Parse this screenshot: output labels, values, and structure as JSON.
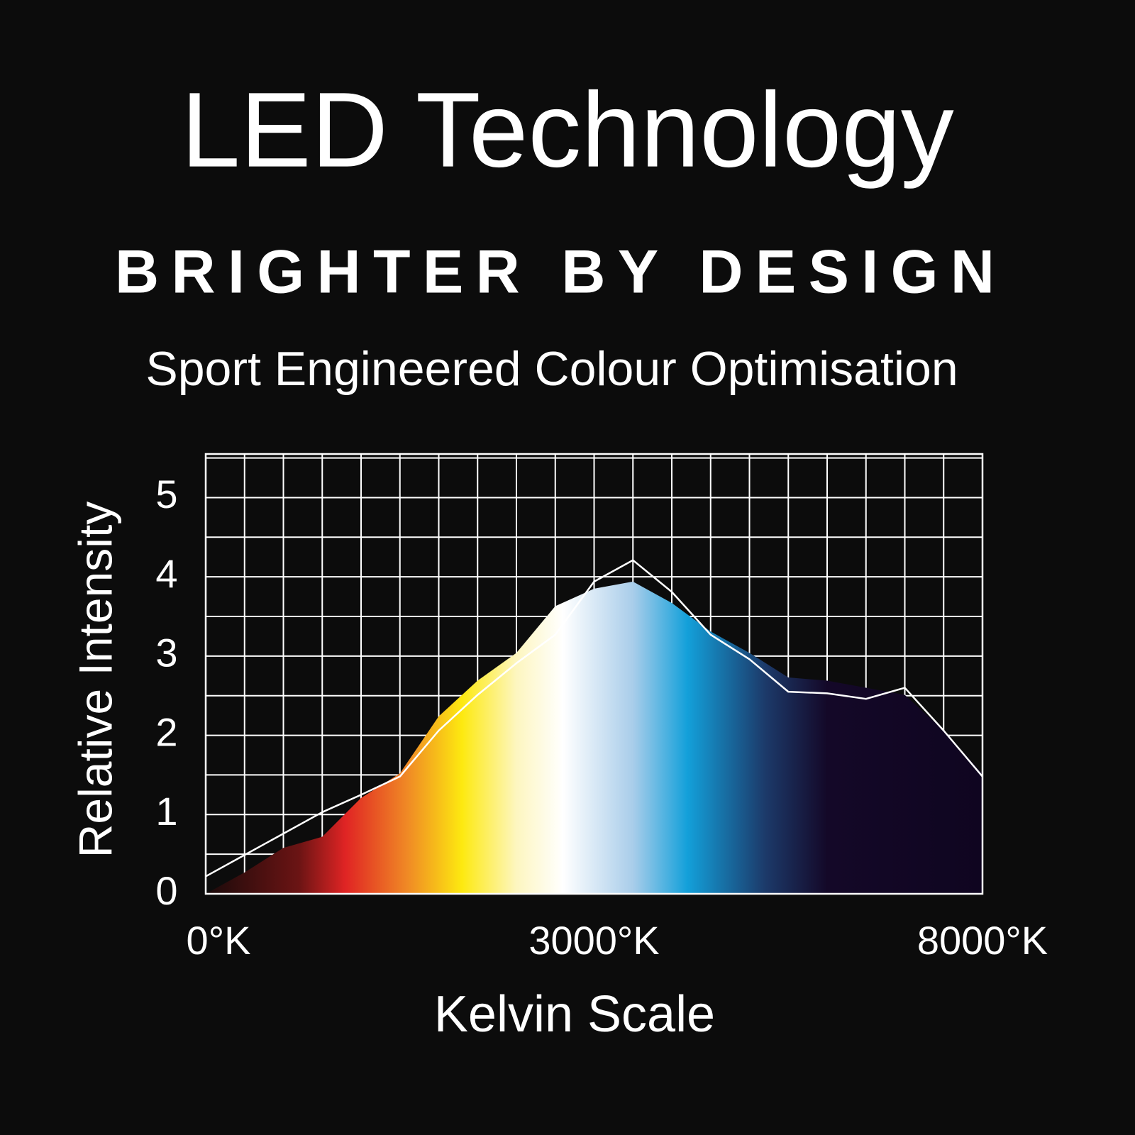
{
  "chart_data": {
    "type": "area",
    "title": "LED Technology",
    "tagline": "BRIGHTER BY DESIGN",
    "subtitle": "Sport Engineered Colour Optimisation",
    "y_label": "Relative Intensity",
    "x_label": "Kelvin Scale",
    "categories": [
      "0°K",
      null,
      null,
      null,
      null,
      null,
      null,
      null,
      null,
      null,
      "3000°K",
      null,
      null,
      null,
      null,
      null,
      null,
      null,
      null,
      null,
      "8000°K"
    ],
    "series": [
      {
        "type": "area",
        "values": [
          0,
          0.27,
          0.58,
          0.72,
          1.21,
          1.52,
          2.24,
          2.69,
          3.04,
          3.63,
          3.85,
          3.94,
          3.67,
          3.31,
          3.04,
          2.73,
          2.69,
          2.6,
          2.51,
          2.06,
          1.52
        ]
      },
      {
        "type": "line",
        "color": "#ffffff",
        "values": [
          0.22,
          0.49,
          0.76,
          1.03,
          1.25,
          1.48,
          2.06,
          2.51,
          2.91,
          3.27,
          3.94,
          4.21,
          3.81,
          3.27,
          2.96,
          2.55,
          2.53,
          2.46,
          2.6,
          2.06,
          1.48
        ]
      }
    ],
    "ylim": [
      0,
      5.55
    ],
    "yticks": [
      0,
      1,
      2,
      3,
      4,
      5
    ],
    "minor_yticks": [
      0.5,
      1.5,
      2.5,
      3.5,
      4.5,
      5.5
    ],
    "grid": true
  }
}
